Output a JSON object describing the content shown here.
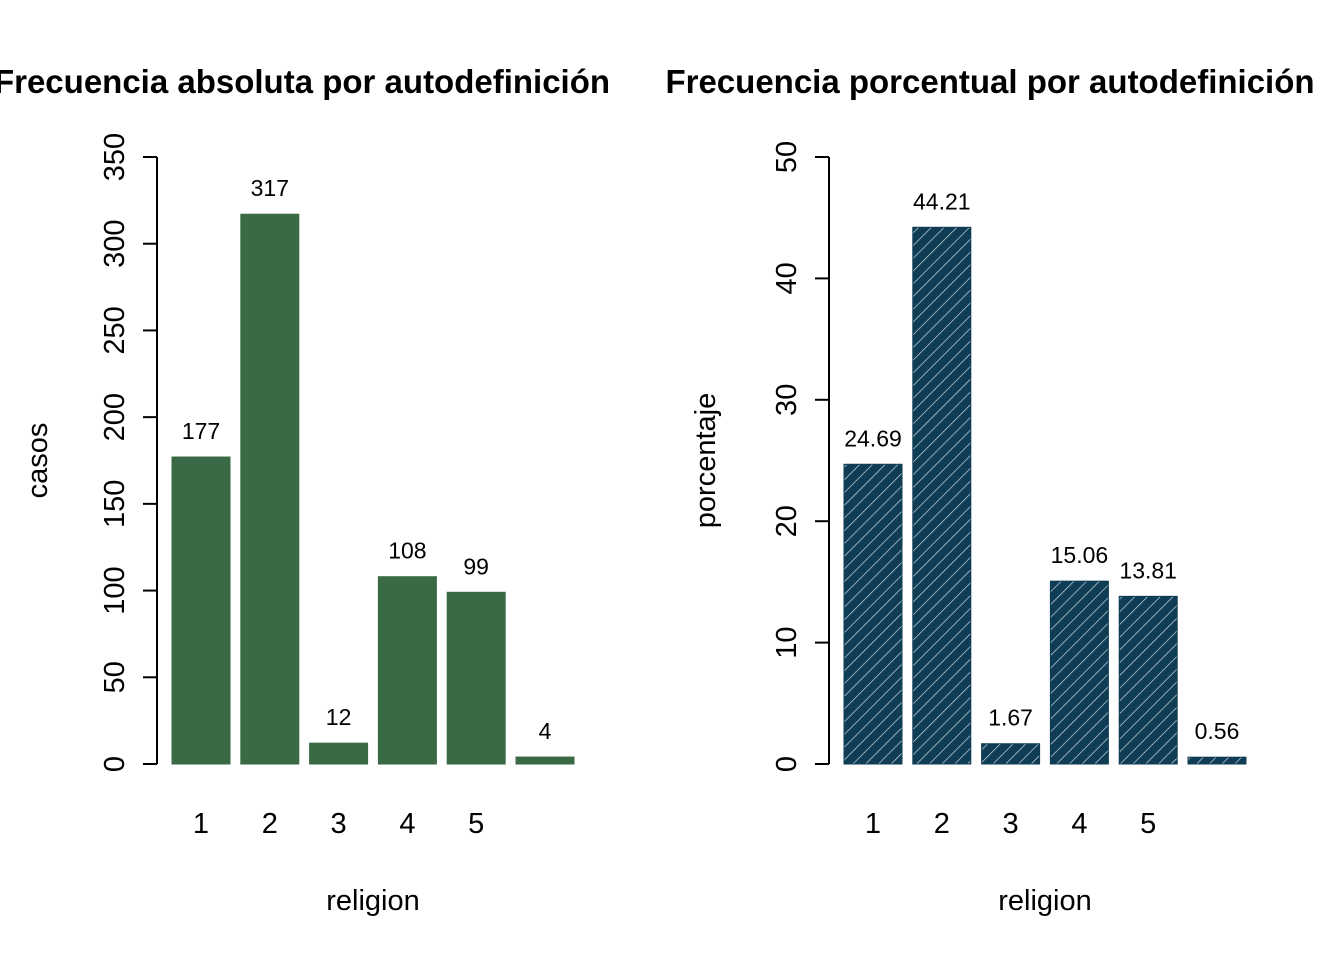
{
  "chart_data": [
    {
      "type": "bar",
      "title": "Frecuencia absoluta por autodefinición",
      "xlabel": "religion",
      "ylabel": "casos",
      "categories": [
        "1",
        "2",
        "3",
        "4",
        "5",
        ""
      ],
      "values": [
        177,
        317,
        12,
        108,
        99,
        4
      ],
      "data_labels": [
        "177",
        "317",
        "12",
        "108",
        "99",
        "4"
      ],
      "ylim": [
        0,
        350
      ],
      "yticks": [
        0,
        50,
        100,
        150,
        200,
        250,
        300,
        350
      ],
      "grid": false,
      "bar_color": "#3a6a45",
      "hatched": false
    },
    {
      "type": "bar",
      "title": "Frecuencia porcentual por autodefinición",
      "xlabel": "religion",
      "ylabel": "porcentaje",
      "categories": [
        "1",
        "2",
        "3",
        "4",
        "5",
        ""
      ],
      "values": [
        24.69,
        44.21,
        1.67,
        15.06,
        13.81,
        0.56
      ],
      "data_labels": [
        "24.69",
        "44.21",
        "1.67",
        "15.06",
        "13.81",
        "0.56"
      ],
      "ylim": [
        0,
        50
      ],
      "yticks": [
        0,
        10,
        20,
        30,
        40,
        50
      ],
      "grid": false,
      "bar_color": "#0f3d55",
      "hatched": true
    }
  ]
}
